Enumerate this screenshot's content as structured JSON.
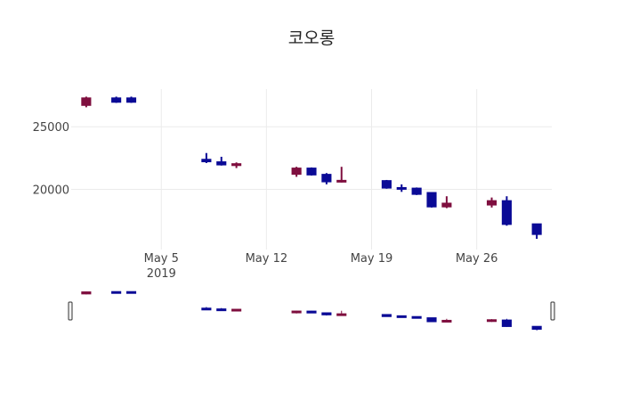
{
  "chart_data": {
    "type": "candlestick",
    "title": "코오롱",
    "xlabel": "",
    "ylabel": "",
    "increasing_color": "#7f0f3f",
    "decreasing_color": "#0a0a96",
    "x_range": [
      "2019-04-29",
      "2019-05-31"
    ],
    "y_range": [
      15200,
      28000
    ],
    "grid": true,
    "rangeslider": true,
    "x_ticks": [
      {
        "date": "2019-05-05",
        "label": "May 5",
        "sublabel": "2019"
      },
      {
        "date": "2019-05-12",
        "label": "May 12",
        "sublabel": ""
      },
      {
        "date": "2019-05-19",
        "label": "May 19",
        "sublabel": ""
      },
      {
        "date": "2019-05-26",
        "label": "May 26",
        "sublabel": ""
      }
    ],
    "y_ticks": [
      {
        "value": 20000,
        "label": "20000"
      },
      {
        "value": 25000,
        "label": "25000"
      }
    ],
    "candles": [
      {
        "date": "2019-04-30",
        "open": 26700,
        "high": 27400,
        "low": 26550,
        "close": 27300
      },
      {
        "date": "2019-05-02",
        "open": 27300,
        "high": 27400,
        "low": 26900,
        "close": 26950
      },
      {
        "date": "2019-05-03",
        "open": 27300,
        "high": 27400,
        "low": 26900,
        "close": 26950
      },
      {
        "date": "2019-05-08",
        "open": 22400,
        "high": 22900,
        "low": 22100,
        "close": 22200
      },
      {
        "date": "2019-05-09",
        "open": 22200,
        "high": 22600,
        "low": 21900,
        "close": 21950
      },
      {
        "date": "2019-05-10",
        "open": 21900,
        "high": 22150,
        "low": 21700,
        "close": 22050
      },
      {
        "date": "2019-05-14",
        "open": 21200,
        "high": 21800,
        "low": 21000,
        "close": 21700
      },
      {
        "date": "2019-05-15",
        "open": 21700,
        "high": 21750,
        "low": 21100,
        "close": 21150
      },
      {
        "date": "2019-05-16",
        "open": 21200,
        "high": 21300,
        "low": 20400,
        "close": 20600
      },
      {
        "date": "2019-05-17",
        "open": 20600,
        "high": 21800,
        "low": 20550,
        "close": 20700
      },
      {
        "date": "2019-05-20",
        "open": 20700,
        "high": 20750,
        "low": 20050,
        "close": 20100
      },
      {
        "date": "2019-05-21",
        "open": 20100,
        "high": 20400,
        "low": 19800,
        "close": 20050
      },
      {
        "date": "2019-05-22",
        "open": 20100,
        "high": 20150,
        "low": 19550,
        "close": 19600
      },
      {
        "date": "2019-05-23",
        "open": 19750,
        "high": 19750,
        "low": 18550,
        "close": 18600
      },
      {
        "date": "2019-05-24",
        "open": 18600,
        "high": 19450,
        "low": 18500,
        "close": 18900
      },
      {
        "date": "2019-05-27",
        "open": 18750,
        "high": 19350,
        "low": 18550,
        "close": 19100
      },
      {
        "date": "2019-05-28",
        "open": 19100,
        "high": 19450,
        "low": 17100,
        "close": 17200
      },
      {
        "date": "2019-05-30",
        "open": 17250,
        "high": 17250,
        "low": 16050,
        "close": 16400
      }
    ]
  }
}
